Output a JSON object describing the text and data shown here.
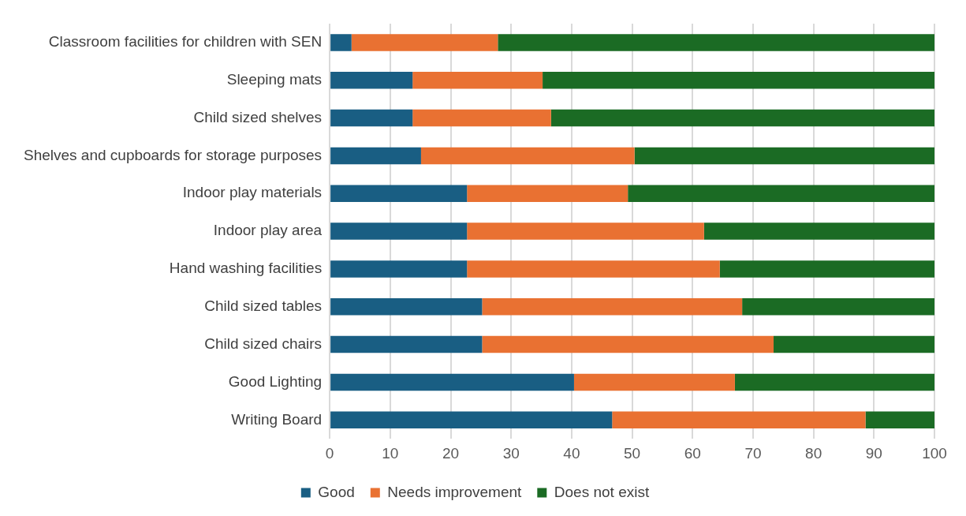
{
  "chart_data": {
    "type": "bar",
    "orientation": "horizontal",
    "stacked": true,
    "categories": [
      "Classroom facilities for children with SEN",
      "Sleeping mats",
      "Child sized shelves",
      "Shelves and cupboards for storage purposes",
      "Indoor play materials",
      "Indoor play area",
      "Hand washing facilities",
      "Child sized tables",
      "Child sized chairs",
      "Good Lighting",
      "Writing Board"
    ],
    "series": [
      {
        "name": "Good",
        "color": "#195e83",
        "values": [
          3.6,
          13.7,
          13.7,
          15.1,
          22.7,
          22.7,
          22.7,
          25.2,
          25.2,
          40.4,
          46.7
        ]
      },
      {
        "name": "Needs improvement",
        "color": "#e97132",
        "values": [
          24.2,
          21.5,
          22.9,
          35.3,
          26.6,
          39.2,
          41.8,
          43.0,
          48.2,
          26.6,
          41.9
        ]
      },
      {
        "name": "Does not exist",
        "color": "#1b6b24",
        "values": [
          72.2,
          64.8,
          63.4,
          49.6,
          50.7,
          38.1,
          35.5,
          31.8,
          26.6,
          33.0,
          11.4
        ]
      }
    ],
    "xlim": [
      0,
      100
    ],
    "xticks": [
      0,
      10,
      20,
      30,
      40,
      50,
      60,
      70,
      80,
      90,
      100
    ],
    "grid": "x",
    "legend": "bottom"
  }
}
